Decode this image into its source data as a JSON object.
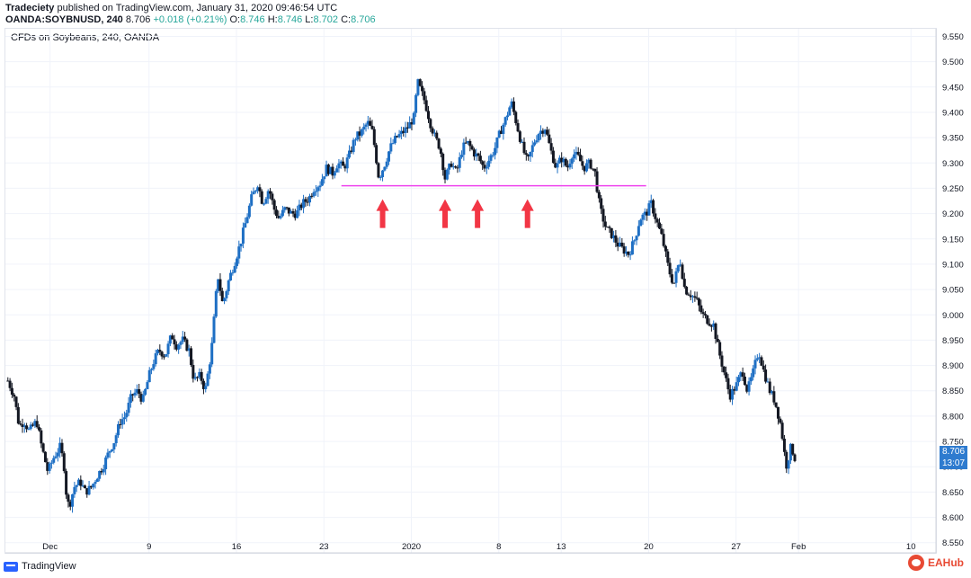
{
  "header": {
    "publisher": "Tradeciety",
    "published_text": "published on TradingView.com, January 31, 2020 09:46:54 UTC",
    "symbol": "OANDA:SOYBNUSD, 240",
    "last": "8.706",
    "change": "+0.018 (+0.21%)",
    "o_label": "O:",
    "o_value": "8.746",
    "h_label": "H:",
    "h_value": "8.746",
    "l_label": "L:",
    "l_value": "8.702",
    "c_label": "C:",
    "c_value": "8.706"
  },
  "chart_title": "CFDs on Soybeans, 240, OANDA",
  "price_tag": {
    "price": "8.706",
    "timer": "13:07"
  },
  "footer": {
    "brand": "TradingView",
    "watermark": "EAHub"
  },
  "colors": {
    "up": "#1e6fc4",
    "down": "#131722",
    "support": "#ee44ee",
    "arrow": "#f23645",
    "grid": "#f0f3fa"
  },
  "chart_data": {
    "type": "candlestick",
    "y_ticks": [
      "8.550",
      "8.600",
      "8.650",
      "8.700",
      "8.750",
      "8.800",
      "8.850",
      "8.900",
      "8.950",
      "9.000",
      "9.050",
      "9.100",
      "9.150",
      "9.200",
      "9.250",
      "9.300",
      "9.350",
      "9.400",
      "9.450",
      "9.500",
      "9.550"
    ],
    "ylim": [
      8.53,
      9.565
    ],
    "x_ticks": [
      {
        "label": "Dec",
        "t": 0.08
      },
      {
        "label": "9",
        "t": 8.0
      },
      {
        "label": "16",
        "t": 15.0
      },
      {
        "label": "23",
        "t": 22.0
      },
      {
        "label": "2020",
        "t": 29.0
      },
      {
        "label": "8",
        "t": 36.0
      },
      {
        "label": "13",
        "t": 41.0
      },
      {
        "label": "20",
        "t": 48.0
      },
      {
        "label": "27",
        "t": 55.0
      },
      {
        "label": "Feb",
        "t": 60.0
      },
      {
        "label": "10",
        "t": 69.0
      }
    ],
    "xlim": [
      -3.5,
      71.0
    ],
    "support_level": {
      "value": 9.255,
      "t_start": 23.4,
      "t_end": 47.8
    },
    "arrow_times": [
      26.7,
      31.7,
      34.3,
      38.3
    ],
    "path": [
      [
        -3.3,
        8.87
      ],
      [
        -2.8,
        8.84
      ],
      [
        -2.4,
        8.78
      ],
      [
        -2.0,
        8.79
      ],
      [
        -1.6,
        8.77
      ],
      [
        -1.0,
        8.79
      ],
      [
        -0.6,
        8.74
      ],
      [
        -0.1,
        8.69
      ],
      [
        0.4,
        8.72
      ],
      [
        0.9,
        8.74
      ],
      [
        1.2,
        8.7
      ],
      [
        1.4,
        8.64
      ],
      [
        1.6,
        8.62
      ],
      [
        2.0,
        8.66
      ],
      [
        2.5,
        8.67
      ],
      [
        2.9,
        8.65
      ],
      [
        3.4,
        8.66
      ],
      [
        3.8,
        8.68
      ],
      [
        4.3,
        8.7
      ],
      [
        4.8,
        8.73
      ],
      [
        5.2,
        8.75
      ],
      [
        5.7,
        8.79
      ],
      [
        6.1,
        8.8
      ],
      [
        6.6,
        8.84
      ],
      [
        7.1,
        8.85
      ],
      [
        7.5,
        8.83
      ],
      [
        8.0,
        8.88
      ],
      [
        8.4,
        8.91
      ],
      [
        8.8,
        8.93
      ],
      [
        9.3,
        8.92
      ],
      [
        9.8,
        8.96
      ],
      [
        10.2,
        8.94
      ],
      [
        10.7,
        8.95
      ],
      [
        11.2,
        8.93
      ],
      [
        11.6,
        8.87
      ],
      [
        12.1,
        8.88
      ],
      [
        12.5,
        8.85
      ],
      [
        13.0,
        8.93
      ],
      [
        13.5,
        9.08
      ],
      [
        13.9,
        9.02
      ],
      [
        14.4,
        9.07
      ],
      [
        14.8,
        9.1
      ],
      [
        15.3,
        9.14
      ],
      [
        15.8,
        9.19
      ],
      [
        16.2,
        9.23
      ],
      [
        16.7,
        9.26
      ],
      [
        17.1,
        9.22
      ],
      [
        17.6,
        9.25
      ],
      [
        18.0,
        9.21
      ],
      [
        18.4,
        9.19
      ],
      [
        18.9,
        9.21
      ],
      [
        19.4,
        9.2
      ],
      [
        19.8,
        9.2
      ],
      [
        20.3,
        9.22
      ],
      [
        20.8,
        9.23
      ],
      [
        21.2,
        9.25
      ],
      [
        21.7,
        9.26
      ],
      [
        22.2,
        9.29
      ],
      [
        22.7,
        9.28
      ],
      [
        23.1,
        9.3
      ],
      [
        23.6,
        9.29
      ],
      [
        24.1,
        9.32
      ],
      [
        24.5,
        9.35
      ],
      [
        25.0,
        9.36
      ],
      [
        25.5,
        9.38
      ],
      [
        25.9,
        9.36
      ],
      [
        26.4,
        9.27
      ],
      [
        26.9,
        9.3
      ],
      [
        27.3,
        9.33
      ],
      [
        27.8,
        9.35
      ],
      [
        28.3,
        9.36
      ],
      [
        28.7,
        9.37
      ],
      [
        29.2,
        9.39
      ],
      [
        29.5,
        9.46
      ],
      [
        29.8,
        9.44
      ],
      [
        30.1,
        9.42
      ],
      [
        30.5,
        9.38
      ],
      [
        30.9,
        9.35
      ],
      [
        31.3,
        9.33
      ],
      [
        31.7,
        9.27
      ],
      [
        32.2,
        9.3
      ],
      [
        32.6,
        9.28
      ],
      [
        33.1,
        9.33
      ],
      [
        33.5,
        9.34
      ],
      [
        34.0,
        9.32
      ],
      [
        34.4,
        9.31
      ],
      [
        34.8,
        9.29
      ],
      [
        35.3,
        9.31
      ],
      [
        35.7,
        9.33
      ],
      [
        36.1,
        9.36
      ],
      [
        36.6,
        9.39
      ],
      [
        37.0,
        9.42
      ],
      [
        37.4,
        9.38
      ],
      [
        37.9,
        9.33
      ],
      [
        38.3,
        9.3
      ],
      [
        38.8,
        9.34
      ],
      [
        39.2,
        9.36
      ],
      [
        39.7,
        9.37
      ],
      [
        40.1,
        9.33
      ],
      [
        40.6,
        9.29
      ],
      [
        41.0,
        9.31
      ],
      [
        41.5,
        9.29
      ],
      [
        41.9,
        9.32
      ],
      [
        42.4,
        9.31
      ],
      [
        42.8,
        9.29
      ],
      [
        43.3,
        9.3
      ],
      [
        43.7,
        9.28
      ],
      [
        44.1,
        9.21
      ],
      [
        44.6,
        9.17
      ],
      [
        45.0,
        9.16
      ],
      [
        45.5,
        9.14
      ],
      [
        45.9,
        9.13
      ],
      [
        46.4,
        9.12
      ],
      [
        46.9,
        9.15
      ],
      [
        47.3,
        9.19
      ],
      [
        47.8,
        9.2
      ],
      [
        48.2,
        9.22
      ],
      [
        48.7,
        9.18
      ],
      [
        49.1,
        9.15
      ],
      [
        49.6,
        9.09
      ],
      [
        50.0,
        9.06
      ],
      [
        50.5,
        9.11
      ],
      [
        50.9,
        9.05
      ],
      [
        51.4,
        9.04
      ],
      [
        51.8,
        9.03
      ],
      [
        52.3,
        9.0
      ],
      [
        52.7,
        8.99
      ],
      [
        53.2,
        8.98
      ],
      [
        53.6,
        8.93
      ],
      [
        54.1,
        8.88
      ],
      [
        54.5,
        8.84
      ],
      [
        55.0,
        8.86
      ],
      [
        55.5,
        8.89
      ],
      [
        55.9,
        8.85
      ],
      [
        56.3,
        8.88
      ],
      [
        56.8,
        8.93
      ],
      [
        57.2,
        8.89
      ],
      [
        57.7,
        8.85
      ],
      [
        58.1,
        8.83
      ],
      [
        58.6,
        8.78
      ],
      [
        59.0,
        8.7
      ],
      [
        59.4,
        8.74
      ],
      [
        59.8,
        8.71
      ]
    ]
  }
}
